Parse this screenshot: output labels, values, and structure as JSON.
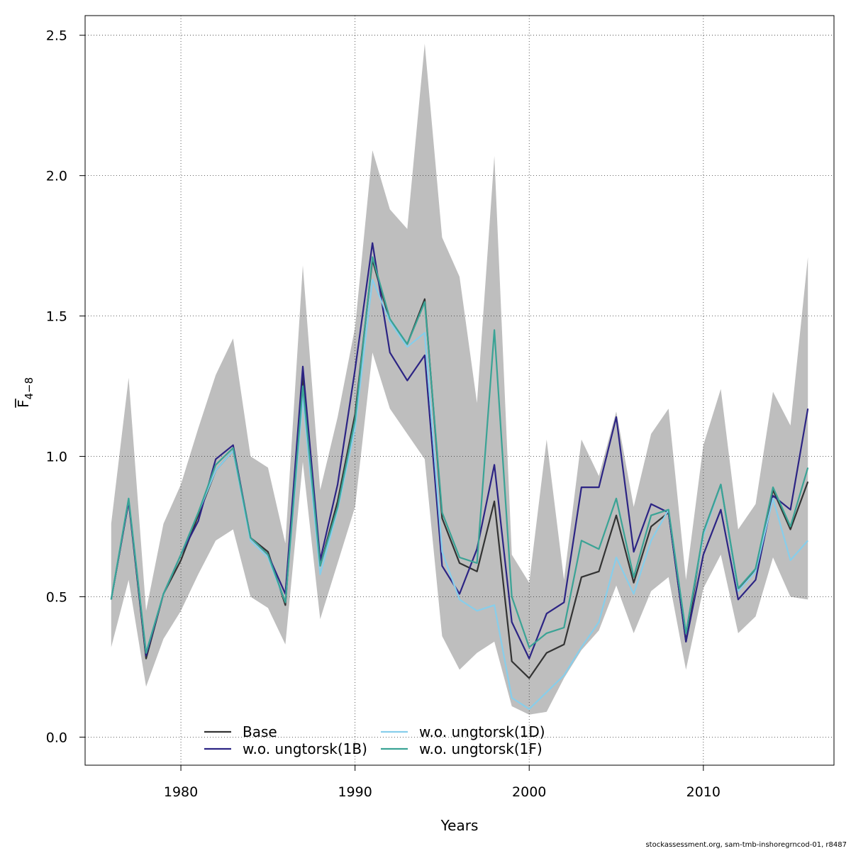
{
  "chart_data": {
    "type": "line",
    "xlabel": "Years",
    "ylabel": "F̅",
    "ylabel_subscript": "4−8",
    "xlim": [
      1974.5,
      2017.5
    ],
    "ylim": [
      -0.1,
      2.57
    ],
    "x_ticks": [
      1980,
      1990,
      2000,
      2010
    ],
    "x_tick_labels": [
      "1980",
      "1990",
      "2000",
      "2010"
    ],
    "y_ticks": [
      0.0,
      0.5,
      1.0,
      1.5,
      2.0,
      2.5
    ],
    "y_tick_labels": [
      "0.0",
      "0.5",
      "1.0",
      "1.5",
      "2.0",
      "2.5"
    ],
    "grid": true,
    "legend_position": "bottom-center",
    "x": [
      1976,
      1977,
      1978,
      1979,
      1980,
      1981,
      1982,
      1983,
      1984,
      1985,
      1986,
      1987,
      1988,
      1989,
      1990,
      1991,
      1992,
      1993,
      1994,
      1995,
      1996,
      1997,
      1998,
      1999,
      2000,
      2001,
      2002,
      2003,
      2004,
      2005,
      2006,
      2007,
      2008,
      2009,
      2010,
      2011,
      2012,
      2013,
      2014,
      2015,
      2016
    ],
    "band": {
      "color": "#bebebe",
      "upper": [
        0.76,
        1.28,
        0.45,
        0.76,
        0.9,
        1.1,
        1.29,
        1.42,
        1.0,
        0.96,
        0.69,
        1.68,
        0.88,
        1.14,
        1.46,
        2.09,
        1.88,
        1.81,
        2.47,
        1.78,
        1.64,
        1.19,
        2.07,
        0.65,
        0.55,
        1.06,
        0.56,
        1.06,
        0.93,
        1.16,
        0.82,
        1.08,
        1.17,
        0.56,
        1.04,
        1.24,
        0.74,
        0.83,
        1.23,
        1.11,
        1.71
      ],
      "lower": [
        0.32,
        0.56,
        0.18,
        0.35,
        0.45,
        0.58,
        0.7,
        0.74,
        0.5,
        0.46,
        0.33,
        0.98,
        0.42,
        0.62,
        0.82,
        1.37,
        1.17,
        1.08,
        0.99,
        0.36,
        0.24,
        0.3,
        0.34,
        0.11,
        0.08,
        0.09,
        0.21,
        0.31,
        0.38,
        0.54,
        0.37,
        0.52,
        0.57,
        0.24,
        0.53,
        0.65,
        0.37,
        0.43,
        0.64,
        0.5,
        0.49
      ]
    },
    "series": [
      {
        "name": "Base",
        "color": "#333333",
        "values": [
          0.49,
          0.84,
          0.28,
          0.51,
          0.63,
          0.79,
          0.95,
          1.02,
          0.71,
          0.66,
          0.47,
          1.29,
          0.61,
          0.84,
          1.15,
          1.7,
          1.48,
          1.4,
          1.56,
          0.78,
          0.62,
          0.59,
          0.84,
          0.27,
          0.21,
          0.3,
          0.33,
          0.57,
          0.59,
          0.79,
          0.55,
          0.75,
          0.8,
          0.34,
          0.73,
          0.9,
          0.52,
          0.6,
          0.88,
          0.74,
          0.91
        ]
      },
      {
        "name": "w.o. ungtorsk(1B)",
        "color": "#2c2484",
        "values": [
          0.49,
          0.84,
          0.29,
          0.51,
          0.65,
          0.77,
          0.99,
          1.04,
          0.71,
          0.65,
          0.51,
          1.32,
          0.63,
          0.9,
          1.31,
          1.76,
          1.37,
          1.27,
          1.36,
          0.61,
          0.51,
          0.67,
          0.97,
          0.41,
          0.28,
          0.44,
          0.48,
          0.89,
          0.89,
          1.14,
          0.66,
          0.83,
          0.8,
          0.34,
          0.65,
          0.81,
          0.49,
          0.56,
          0.86,
          0.81,
          1.17
        ]
      },
      {
        "name": "w.o. ungtorsk(1D)",
        "color": "#87ceeb",
        "values": [
          0.49,
          0.85,
          0.3,
          0.51,
          0.65,
          0.8,
          0.95,
          1.02,
          0.7,
          0.64,
          0.48,
          1.21,
          0.58,
          0.81,
          1.1,
          1.63,
          1.48,
          1.39,
          1.44,
          0.66,
          0.49,
          0.45,
          0.47,
          0.14,
          0.1,
          0.16,
          0.22,
          0.32,
          0.41,
          0.64,
          0.51,
          0.7,
          0.81,
          0.37,
          0.72,
          0.9,
          0.52,
          0.59,
          0.85,
          0.63,
          0.7
        ]
      },
      {
        "name": "w.o. ungtorsk(1F)",
        "color": "#3aa395",
        "values": [
          0.49,
          0.85,
          0.3,
          0.51,
          0.65,
          0.8,
          0.97,
          1.03,
          0.71,
          0.65,
          0.48,
          1.25,
          0.61,
          0.82,
          1.13,
          1.71,
          1.49,
          1.4,
          1.55,
          0.8,
          0.64,
          0.62,
          1.45,
          0.5,
          0.32,
          0.37,
          0.39,
          0.7,
          0.67,
          0.85,
          0.57,
          0.79,
          0.81,
          0.37,
          0.73,
          0.9,
          0.53,
          0.6,
          0.89,
          0.75,
          0.96
        ]
      }
    ],
    "legend_entries": [
      {
        "label": "Base",
        "series_index": 0
      },
      {
        "label": "w.o. ungtorsk(1B)",
        "series_index": 1
      },
      {
        "label": "w.o. ungtorsk(1D)",
        "series_index": 2
      },
      {
        "label": "w.o. ungtorsk(1F)",
        "series_index": 3
      }
    ]
  },
  "footer": "stockassessment.org, sam-tmb-inshoregrncod-01, r8487"
}
